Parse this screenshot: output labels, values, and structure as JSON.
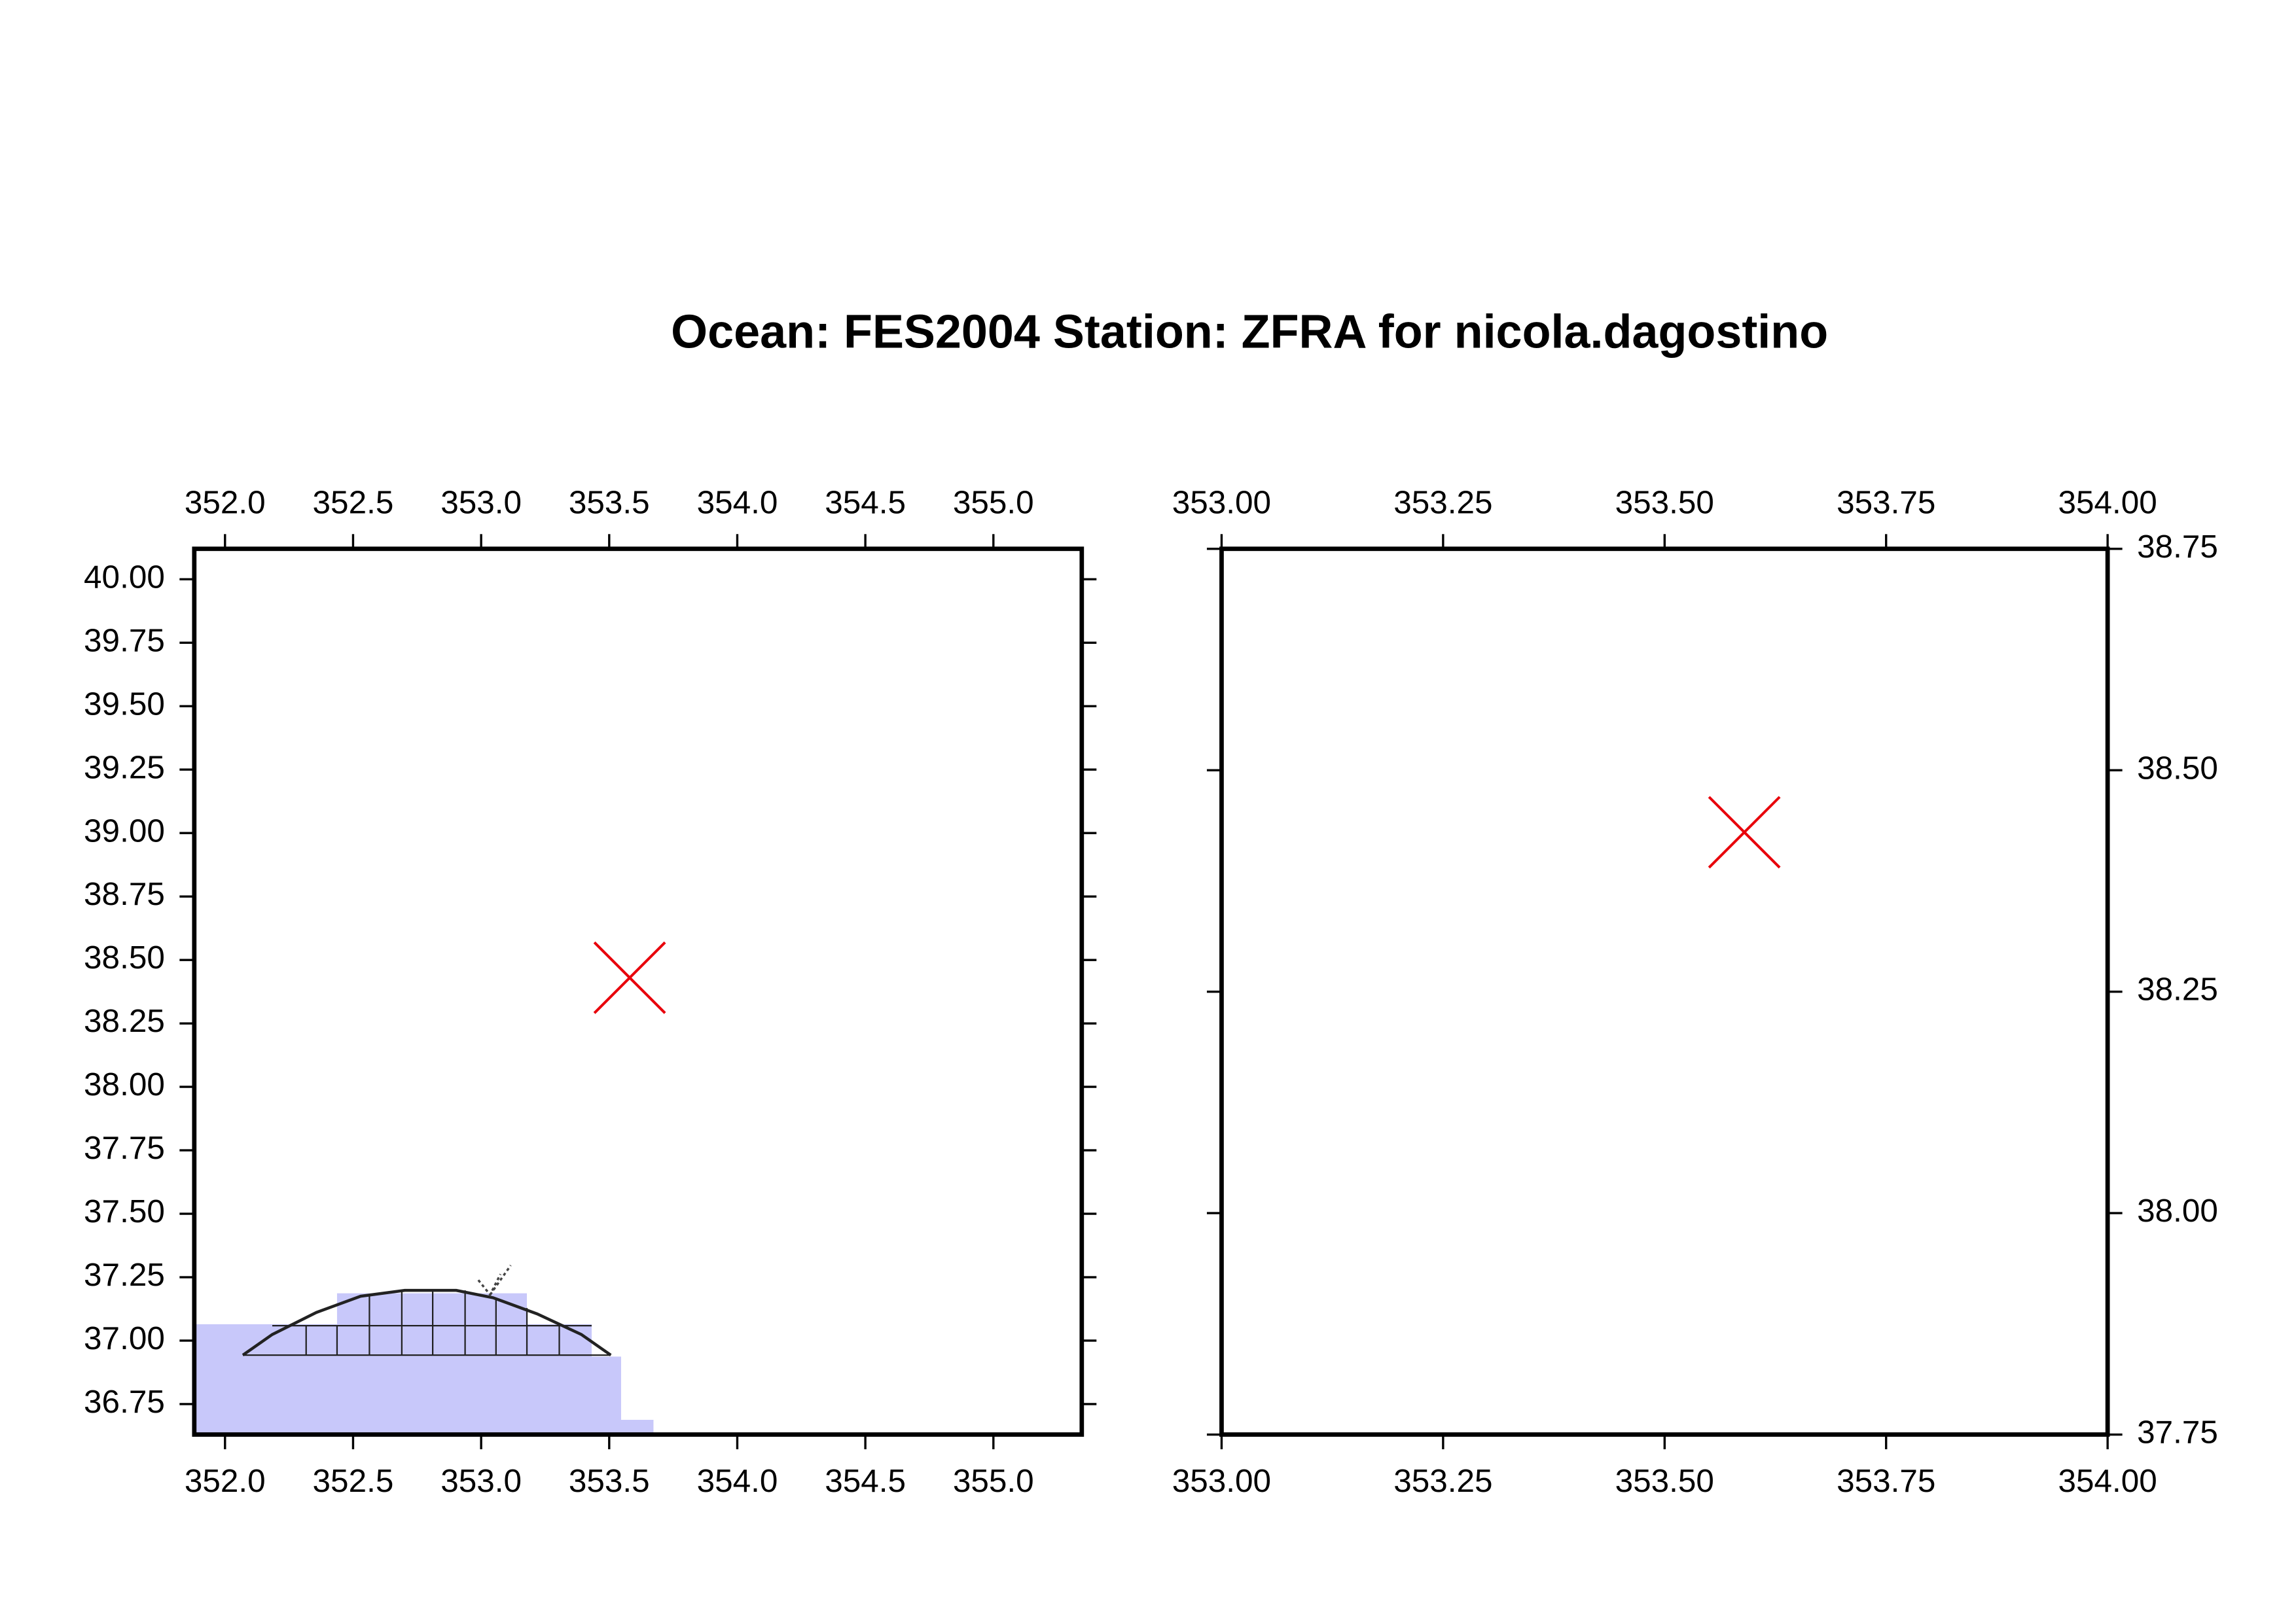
{
  "title": "Ocean: FES2004  Station: ZFRA  for nicola.dagostino",
  "chart_data": [
    {
      "type": "scatter",
      "name": "Station: ZFRA",
      "color": "#e8000b",
      "x": [
        353.58
      ],
      "values": [
        38.43
      ],
      "xlim": [
        351.88,
        355.345
      ],
      "ylim": [
        36.63,
        40.12
      ],
      "xticks": [
        {
          "value": 352.0,
          "label": "352.0"
        },
        {
          "value": 352.5,
          "label": "352.5"
        },
        {
          "value": 353.0,
          "label": "353.0"
        },
        {
          "value": 353.5,
          "label": "353.5"
        },
        {
          "value": 354.0,
          "label": "354.0"
        },
        {
          "value": 354.5,
          "label": "354.5"
        },
        {
          "value": 355.0,
          "label": "355.0"
        }
      ],
      "yticks": [
        {
          "value": 36.75,
          "label": "36.75"
        },
        {
          "value": 37.0,
          "label": "37.00"
        },
        {
          "value": 37.25,
          "label": "37.25"
        },
        {
          "value": 37.5,
          "label": "37.50"
        },
        {
          "value": 37.75,
          "label": "37.75"
        },
        {
          "value": 38.0,
          "label": "38.00"
        },
        {
          "value": 38.25,
          "label": "38.25"
        },
        {
          "value": 38.5,
          "label": "38.50"
        },
        {
          "value": 38.75,
          "label": "38.75"
        },
        {
          "value": 39.0,
          "label": "39.00"
        },
        {
          "value": 39.25,
          "label": "39.25"
        },
        {
          "value": 39.5,
          "label": "39.50"
        },
        {
          "value": 39.75,
          "label": "39.75"
        },
        {
          "value": 40.0,
          "label": "40.00"
        }
      ],
      "yaxis_side": "left"
    },
    {
      "type": "scatter",
      "name": "Station: ZFRA",
      "color": "#e8000b",
      "x": [
        353.59
      ],
      "values": [
        38.43
      ],
      "xlim": [
        353.0,
        354.0
      ],
      "ylim": [
        37.75,
        38.75
      ],
      "xticks": [
        {
          "value": 353.0,
          "label": "353.00"
        },
        {
          "value": 353.25,
          "label": "353.25"
        },
        {
          "value": 353.5,
          "label": "353.50"
        },
        {
          "value": 353.75,
          "label": "353.75"
        },
        {
          "value": 354.0,
          "label": "354.00"
        }
      ],
      "yticks": [
        {
          "value": 37.75,
          "label": "37.75"
        },
        {
          "value": 38.0,
          "label": "38.00"
        },
        {
          "value": 38.25,
          "label": "38.25"
        },
        {
          "value": 38.5,
          "label": "38.50"
        },
        {
          "value": 38.75,
          "label": "38.75"
        }
      ],
      "yaxis_side": "right"
    }
  ]
}
